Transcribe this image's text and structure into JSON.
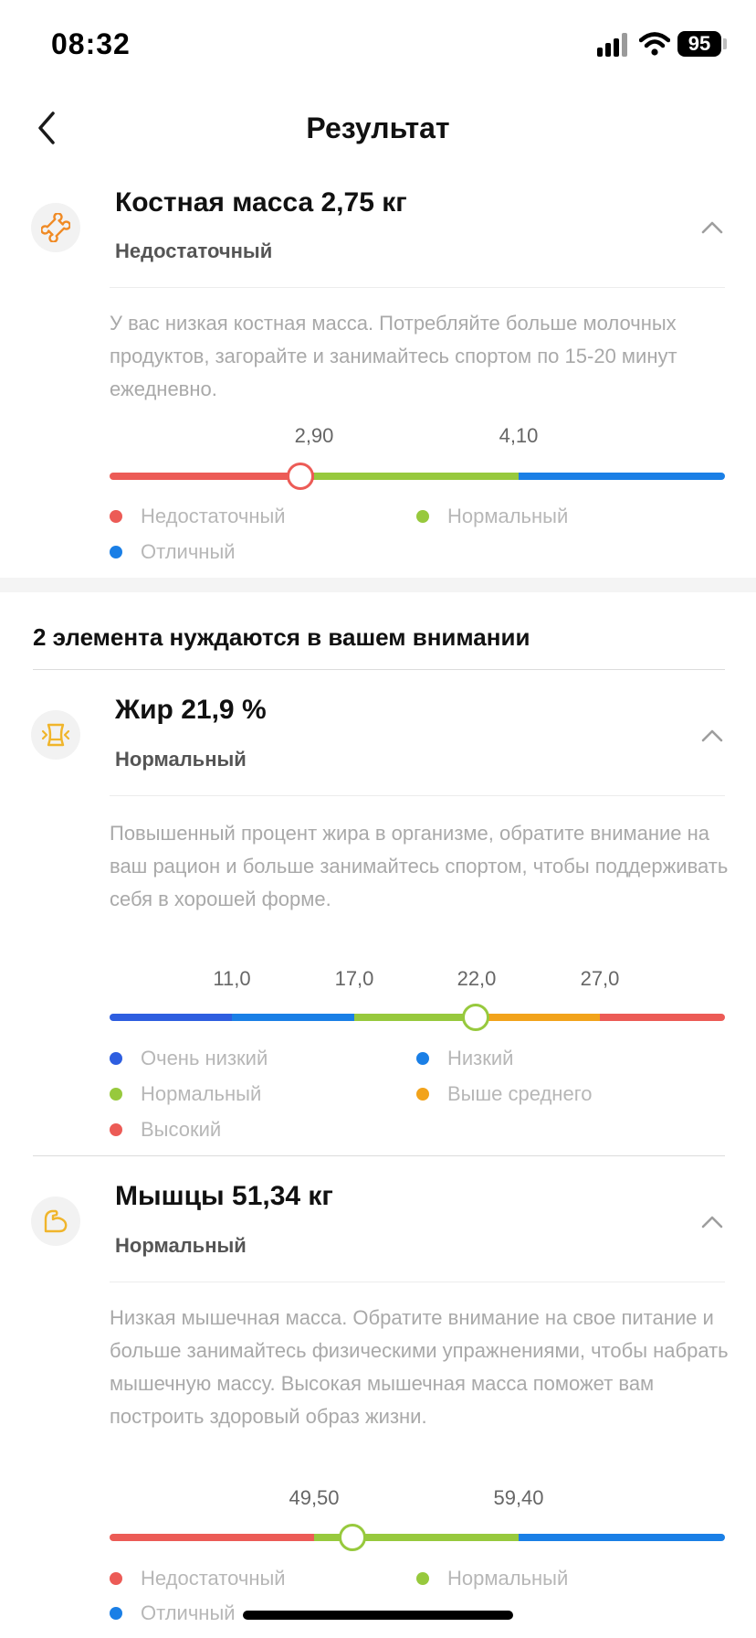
{
  "status_bar": {
    "time": "08:32",
    "battery": "95",
    "icons": [
      "signal-icon",
      "wifi-icon",
      "battery-icon"
    ]
  },
  "nav": {
    "title": "Результат",
    "back_icon": "chevron-left-icon"
  },
  "colors": {
    "red": "#ec5b56",
    "green": "#97c93d",
    "blue": "#1a7fe6",
    "dark_blue": "#2e5ee0",
    "orange": "#f2a31b",
    "icon_orange": "#f08a24",
    "icon_yellow": "#f0b52b"
  },
  "bone": {
    "icon": "bone-icon",
    "title": "Костная масса 2,75 кг",
    "status": "Недостаточный",
    "description": "У вас низкая костная масса. Потребляйте больше молочных продуктов, загорайте и занимайтесь спортом по 15-20 минут ежедневно.",
    "ticks": [
      "2,90",
      "4,10"
    ],
    "marker_fraction": 0.31,
    "legend": [
      "Недостаточный",
      "Нормальный",
      "Отличный"
    ]
  },
  "attention_title": "2 элемента нуждаются в вашем внимании",
  "fat": {
    "icon": "waist-icon",
    "title": "Жир 21,9 %",
    "status": "Нормальный",
    "description": "Повышенный процент жира в организме, обратите внимание на ваш рацион и больше занимайтесь спортом, чтобы поддерживать себя в хорошей форме.",
    "ticks": [
      "11,0",
      "17,0",
      "22,0",
      "27,0"
    ],
    "marker_fraction": 0.595,
    "legend": [
      "Очень низкий",
      "Низкий",
      "Нормальный",
      "Выше среднего",
      "Высокий"
    ]
  },
  "muscle": {
    "icon": "bicep-icon",
    "title": "Мышцы 51,34 кг",
    "status": "Нормальный",
    "description": "Низкая мышечная масса. Обратите внимание на свое питание и больше занимайтесь физическими упражнениями, чтобы набрать мышечную массу. Высокая мышечная масса поможет вам построить здоровый образ жизни.",
    "ticks": [
      "49,50",
      "59,40"
    ],
    "marker_fraction": 0.395,
    "legend": [
      "Недостаточный",
      "Нормальный",
      "Отличный"
    ]
  }
}
